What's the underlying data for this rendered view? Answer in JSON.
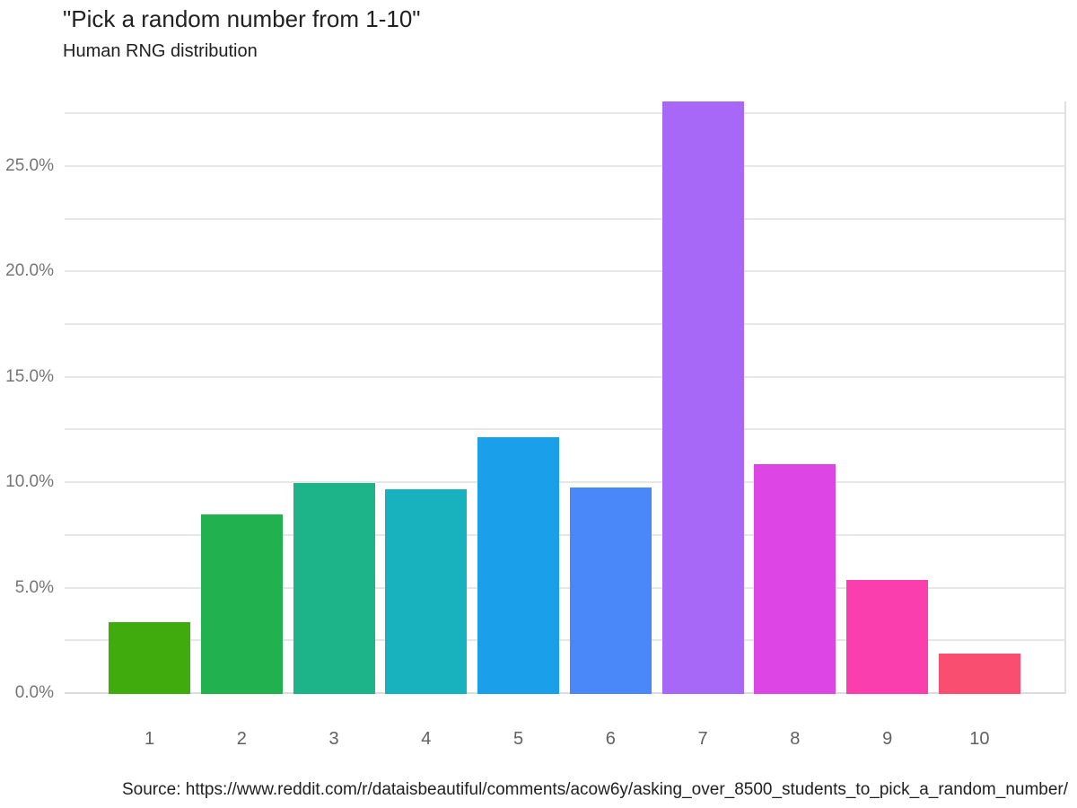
{
  "chart_data": {
    "type": "bar",
    "title": "\"Pick a random number from 1-10\"",
    "subtitle": "Human RNG distribution",
    "source": "Source: https://www.reddit.com/r/dataisbeautiful/comments/acow6y/asking_over_8500_students_to_pick_a_random_number/",
    "categories": [
      "1",
      "2",
      "3",
      "4",
      "5",
      "6",
      "7",
      "8",
      "9",
      "10"
    ],
    "values": [
      3.4,
      8.5,
      10.0,
      9.7,
      12.2,
      9.8,
      28.1,
      10.9,
      5.4,
      1.9
    ],
    "value_unit": "%",
    "bar_colors": [
      "#3FAB0C",
      "#21B24F",
      "#1CB488",
      "#18B1BE",
      "#1AA0EB",
      "#4A87F8",
      "#A768F8",
      "#DE45E5",
      "#FB3EAE",
      "#FA4E70"
    ],
    "xlabel": "",
    "ylabel": "",
    "ylim": [
      0,
      28.1
    ],
    "ytick_values": [
      0,
      5,
      10,
      15,
      20,
      25
    ],
    "ytick_labels": [
      "0.0%",
      "5.0%",
      "10.0%",
      "15.0%",
      "20.0%",
      "25.0%"
    ],
    "gridline_step": 2.5,
    "gridline_max": 27.5,
    "grid": "horizontal",
    "legend_position": "none",
    "colors": {
      "background": "#ffffff",
      "gridline": "#e7e7e7",
      "baseline": "#dcdcdc",
      "right_border": "#e0e0e0",
      "title_text": "#212121",
      "ytick_text": "#757575",
      "xtick_text": "#616161",
      "source_text": "#212121"
    }
  }
}
